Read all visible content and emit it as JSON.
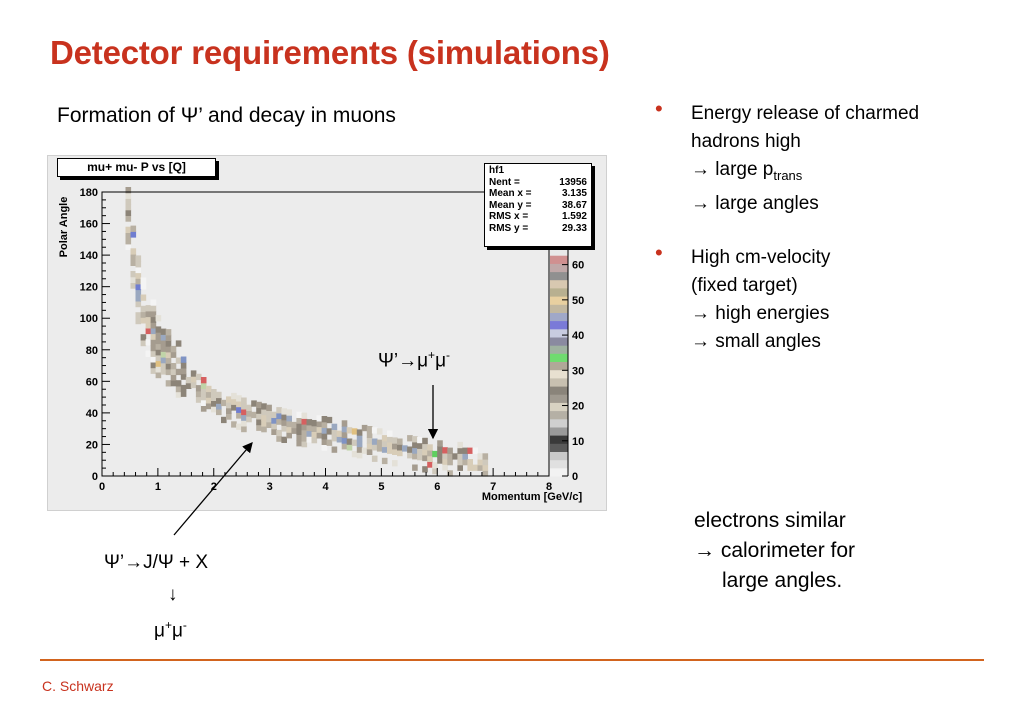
{
  "slide": {
    "title": "Detector requirements (simulations)",
    "caption": "Formation of Ψ’ and decay in muons",
    "footer": "C. Schwarz"
  },
  "plot": {
    "title": "mu+ mu- P vs [Q]",
    "stats": {
      "name": "hf1",
      "rows": [
        {
          "label": "Nent = ",
          "value": "13956"
        },
        {
          "label": "Mean x = ",
          "value": "3.135"
        },
        {
          "label": "Mean y = ",
          "value": "38.67"
        },
        {
          "label": "RMS x = ",
          "value": "1.592"
        },
        {
          "label": "RMS y = ",
          "value": "29.33"
        }
      ]
    }
  },
  "chart_data": {
    "type": "heatmap",
    "title": "mu+ mu- P vs [Q]",
    "xlabel": "Momentum [GeV/c]",
    "ylabel": "Polar Angle",
    "xlim": [
      0,
      8
    ],
    "ylim": [
      0,
      180
    ],
    "x_ticks": [
      "0",
      "1",
      "2",
      "3",
      "4",
      "5",
      "6",
      "7",
      "8"
    ],
    "y_ticks": [
      "0",
      "20",
      "40",
      "60",
      "80",
      "100",
      "120",
      "140",
      "160",
      "180"
    ],
    "z_ticks": [
      "0",
      "10",
      "20",
      "30",
      "40",
      "50",
      "60"
    ],
    "zlim": [
      0,
      65
    ],
    "ridge": {
      "x": [
        0.45,
        0.5,
        0.6,
        0.8,
        1.0,
        1.3,
        1.6,
        2.0,
        2.5,
        3.0,
        3.5,
        4.0,
        4.5,
        5.0,
        5.5,
        6.0,
        6.5,
        6.8
      ],
      "y": [
        162,
        140,
        115,
        92,
        78,
        65,
        55,
        46,
        38,
        33,
        29,
        26,
        22,
        18,
        14,
        11,
        7,
        4
      ]
    },
    "stats": {
      "entries": 13956,
      "mean_x": 3.135,
      "mean_y": 38.67,
      "rms_x": 1.592,
      "rms_y": 29.33
    }
  },
  "annotations": {
    "main_decay": {
      "psi": "Ψ’→μ",
      "sup1": "+",
      "mu": "μ",
      "sup2": "-"
    },
    "jpsi_decay": {
      "line1": "Ψ’→J/Ψ + X",
      "arrow": "↓",
      "mu1": "μ",
      "sup1": "+",
      "mu2": "μ",
      "sup2": "-"
    }
  },
  "bullets": [
    {
      "lines": [
        "Energy release of charmed",
        "hadrons high",
        "→ large p",
        "→ large angles"
      ],
      "subscript": "trans"
    },
    {
      "lines": [
        "High cm-velocity",
        "(fixed target)",
        "→ high energies",
        "→ small angles"
      ]
    }
  ],
  "note": [
    "electrons similar",
    "→ calorimeter for",
    "large angles."
  ],
  "colors": {
    "accent": "#c8321e",
    "divider": "#d2641e"
  }
}
